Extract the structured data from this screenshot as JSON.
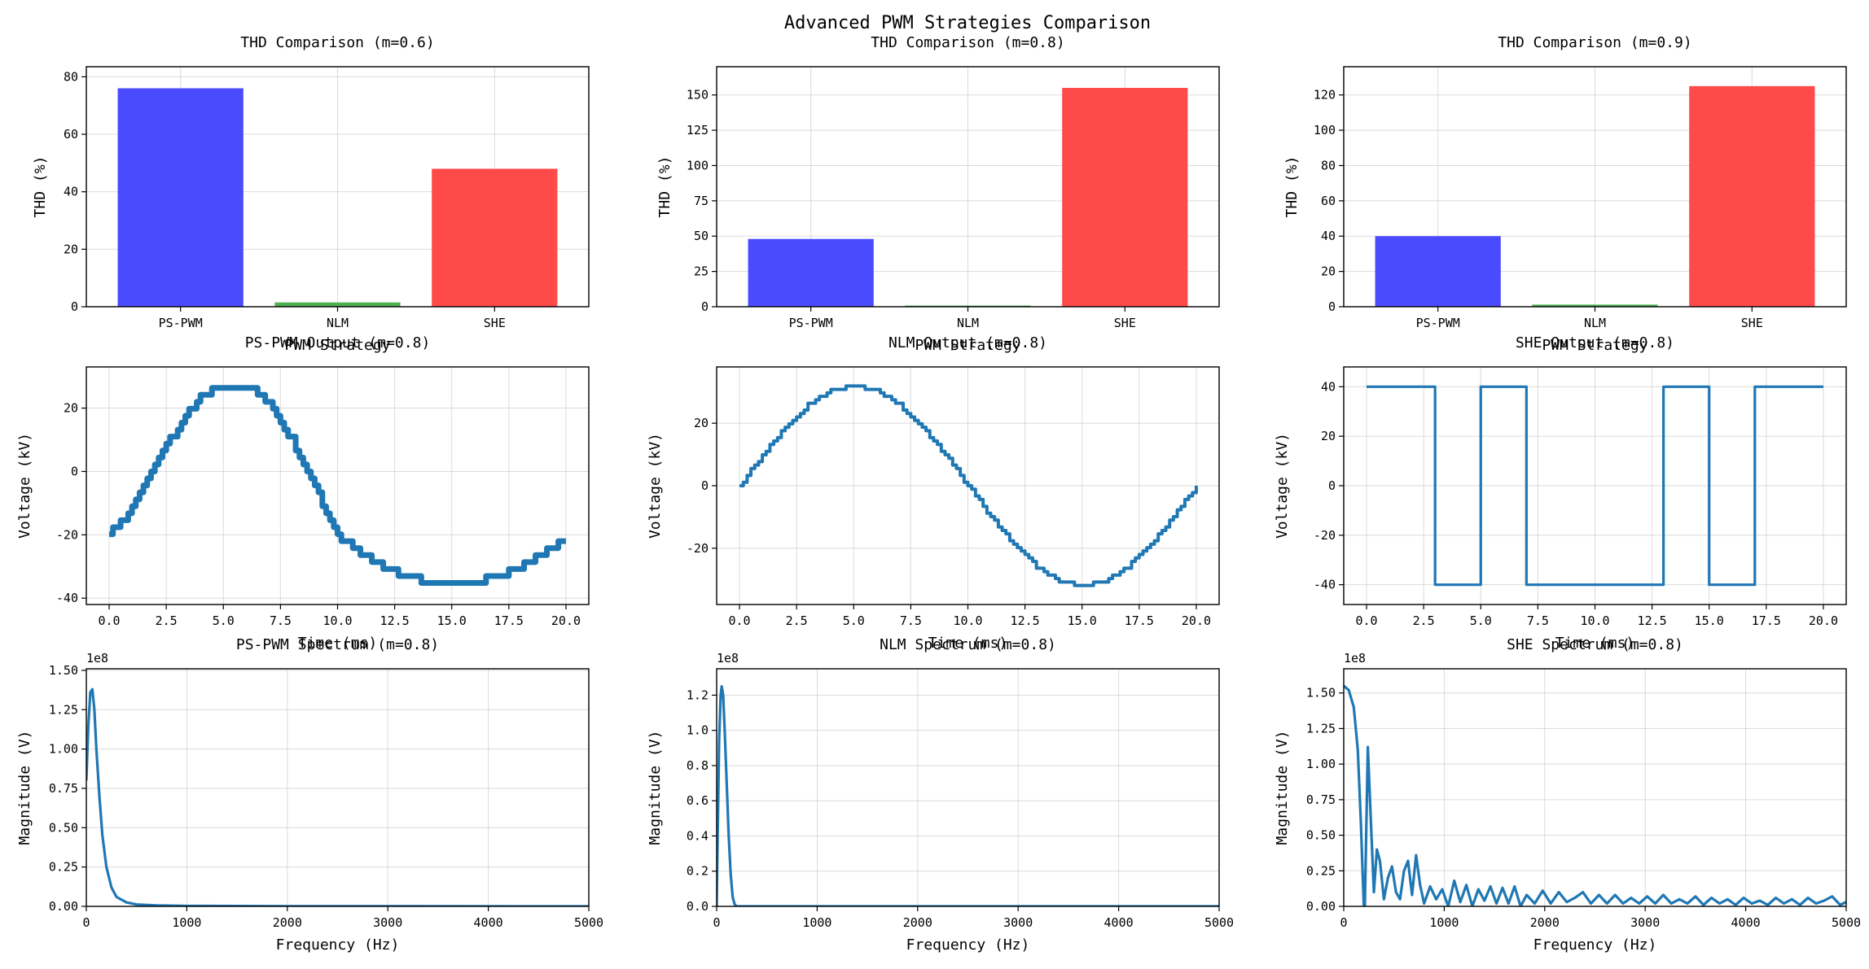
{
  "figure": {
    "suptitle": "Advanced PWM Strategies Comparison"
  },
  "colors": {
    "line": "#1f77b4",
    "bar_blue": "#4a4aff",
    "bar_green": "#4caf50",
    "bar_red": "#ff4a4a"
  },
  "chart_data": [
    {
      "type": "bar",
      "title": "THD Comparison (m=0.6)",
      "xlabel": "PWM Strategy",
      "ylabel": "THD (%)",
      "categories": [
        "PS-PWM",
        "NLM",
        "SHE"
      ],
      "values": [
        76,
        1.5,
        48
      ],
      "ylim": [
        0,
        83.5
      ],
      "yticks": [
        0,
        20,
        40,
        60,
        80
      ],
      "grid": true
    },
    {
      "type": "bar",
      "title": "THD Comparison (m=0.8)",
      "xlabel": "PWM Strategy",
      "ylabel": "THD (%)",
      "categories": [
        "PS-PWM",
        "NLM",
        "SHE"
      ],
      "values": [
        48,
        0.8,
        155
      ],
      "ylim": [
        0,
        170
      ],
      "yticks": [
        0,
        25,
        50,
        75,
        100,
        125,
        150
      ],
      "grid": true
    },
    {
      "type": "bar",
      "title": "THD Comparison (m=0.9)",
      "xlabel": "PWM Strategy",
      "ylabel": "THD (%)",
      "categories": [
        "PS-PWM",
        "NLM",
        "SHE"
      ],
      "values": [
        40,
        1.2,
        125
      ],
      "ylim": [
        0,
        136
      ],
      "yticks": [
        0,
        20,
        40,
        60,
        80,
        100,
        120
      ],
      "grid": true
    },
    {
      "type": "line",
      "title": "PS-PWM Output (m=0.8)",
      "xlabel": "Time (ms)",
      "ylabel": "Voltage (kV)",
      "xlim": [
        -1,
        21
      ],
      "ylim": [
        -42,
        33
      ],
      "xticks": [
        0,
        2.5,
        5,
        7.5,
        10,
        12.5,
        15,
        17.5,
        20
      ],
      "yticks": [
        -40,
        -20,
        0,
        20
      ],
      "x": [
        0,
        1,
        2,
        3,
        4,
        5,
        6,
        7,
        8,
        9,
        10,
        11,
        12,
        13,
        14,
        15,
        16,
        17,
        18,
        19,
        20
      ],
      "y": [
        -20,
        -12,
        2,
        14,
        24,
        27,
        27,
        22,
        10,
        -5,
        -20,
        -26,
        -30,
        -33,
        -35,
        -35,
        -35,
        -33,
        -30,
        -26,
        -21
      ],
      "grid": true
    },
    {
      "type": "line",
      "title": "NLM Output (m=0.8)",
      "xlabel": "Time (ms)",
      "ylabel": "Voltage (kV)",
      "xlim": [
        -1,
        21
      ],
      "ylim": [
        -38,
        38
      ],
      "xticks": [
        0,
        2.5,
        5,
        7.5,
        10,
        12.5,
        15,
        17.5,
        20
      ],
      "yticks": [
        -20,
        0,
        20
      ],
      "x": [
        0,
        1,
        2,
        3,
        4,
        5,
        6,
        7,
        8,
        9,
        10,
        11,
        12,
        13,
        14,
        15,
        16,
        17,
        18,
        19,
        20
      ],
      "y": [
        0,
        9.9,
        18.8,
        25.9,
        30.4,
        32,
        30.4,
        25.9,
        18.8,
        9.9,
        0,
        -9.9,
        -18.8,
        -25.9,
        -30.4,
        -32,
        -30.4,
        -25.9,
        -18.8,
        -9.9,
        0
      ],
      "grid": true
    },
    {
      "type": "line",
      "title": "SHE Output (m=0.8)",
      "xlabel": "Time (ms)",
      "ylabel": "Voltage (kV)",
      "xlim": [
        -1,
        21
      ],
      "ylim": [
        -48,
        48
      ],
      "xticks": [
        0,
        2.5,
        5,
        7.5,
        10,
        12.5,
        15,
        17.5,
        20
      ],
      "yticks": [
        -40,
        -20,
        0,
        20,
        40
      ],
      "x": [
        0,
        3,
        3,
        5,
        5,
        7,
        7,
        13,
        13,
        15,
        15,
        17,
        17,
        20
      ],
      "y": [
        40,
        40,
        -40,
        -40,
        40,
        40,
        -40,
        -40,
        40,
        40,
        -40,
        -40,
        40,
        40
      ],
      "grid": true
    },
    {
      "type": "line",
      "title": "PS-PWM Spectrum (m=0.8)",
      "xlabel": "Frequency (Hz)",
      "ylabel": "Magnitude (V)",
      "y_scale_label": "1e8",
      "xlim": [
        0,
        5000
      ],
      "ylim": [
        0,
        1.51
      ],
      "xticks": [
        0,
        1000,
        2000,
        3000,
        4000,
        5000
      ],
      "yticks": [
        0,
        0.25,
        0.5,
        0.75,
        1.0,
        1.25,
        1.5
      ],
      "ytick_labels": [
        "0.00",
        "0.25",
        "0.50",
        "0.75",
        "1.00",
        "1.25",
        "1.50"
      ],
      "x": [
        0,
        20,
        40,
        60,
        80,
        100,
        130,
        160,
        200,
        250,
        300,
        400,
        500,
        700,
        1000,
        2000,
        5000
      ],
      "y": [
        0.8,
        1.15,
        1.36,
        1.38,
        1.25,
        1.0,
        0.7,
        0.45,
        0.25,
        0.12,
        0.06,
        0.025,
        0.012,
        0.006,
        0.003,
        0.001,
        0
      ],
      "grid": true
    },
    {
      "type": "line",
      "title": "NLM Spectrum (m=0.8)",
      "xlabel": "Frequency (Hz)",
      "ylabel": "Magnitude (V)",
      "y_scale_label": "1e8",
      "xlim": [
        0,
        5000
      ],
      "ylim": [
        0,
        1.35
      ],
      "xticks": [
        0,
        1000,
        2000,
        3000,
        4000,
        5000
      ],
      "yticks": [
        0,
        0.2,
        0.4,
        0.6,
        0.8,
        1.0,
        1.2
      ],
      "ytick_labels": [
        "0.0",
        "0.2",
        "0.4",
        "0.6",
        "0.8",
        "1.0",
        "1.2"
      ],
      "x": [
        0,
        10,
        25,
        40,
        50,
        65,
        80,
        100,
        120,
        140,
        160,
        180,
        200,
        5000
      ],
      "y": [
        0,
        0.4,
        0.95,
        1.2,
        1.25,
        1.2,
        1.0,
        0.7,
        0.4,
        0.18,
        0.05,
        0.01,
        0,
        0
      ],
      "grid": true
    },
    {
      "type": "line",
      "title": "SHE Spectrum (m=0.8)",
      "xlabel": "Frequency (Hz)",
      "ylabel": "Magnitude (V)",
      "y_scale_label": "1e8",
      "xlim": [
        0,
        5000
      ],
      "ylim": [
        0,
        1.67
      ],
      "xticks": [
        0,
        1000,
        2000,
        3000,
        4000,
        5000
      ],
      "yticks": [
        0,
        0.25,
        0.5,
        0.75,
        1.0,
        1.25,
        1.5
      ],
      "ytick_labels": [
        "0.00",
        "0.25",
        "0.50",
        "0.75",
        "1.00",
        "1.25",
        "1.50"
      ],
      "x": [
        0,
        50,
        100,
        140,
        170,
        200,
        210,
        240,
        270,
        300,
        330,
        360,
        400,
        440,
        480,
        520,
        560,
        600,
        640,
        680,
        720,
        760,
        800,
        860,
        920,
        980,
        1040,
        1100,
        1160,
        1220,
        1280,
        1340,
        1400,
        1460,
        1520,
        1580,
        1640,
        1700,
        1760,
        1820,
        1900,
        1980,
        2060,
        2140,
        2220,
        2300,
        2380,
        2460,
        2540,
        2620,
        2700,
        2780,
        2860,
        2940,
        3020,
        3100,
        3180,
        3260,
        3340,
        3420,
        3500,
        3580,
        3660,
        3740,
        3820,
        3900,
        3980,
        4060,
        4140,
        4220,
        4300,
        4380,
        4460,
        4540,
        4620,
        4700,
        4780,
        4860,
        4940,
        5000
      ],
      "y": [
        1.55,
        1.52,
        1.4,
        1.1,
        0.6,
        0.0,
        0.0,
        1.12,
        0.6,
        0.1,
        0.4,
        0.32,
        0.05,
        0.2,
        0.28,
        0.1,
        0.05,
        0.25,
        0.32,
        0.08,
        0.36,
        0.15,
        0.02,
        0.14,
        0.05,
        0.12,
        0.0,
        0.18,
        0.03,
        0.15,
        0.0,
        0.12,
        0.04,
        0.14,
        0.02,
        0.13,
        0.02,
        0.14,
        0.0,
        0.08,
        0.02,
        0.11,
        0.02,
        0.1,
        0.03,
        0.06,
        0.1,
        0.02,
        0.08,
        0.02,
        0.08,
        0.02,
        0.06,
        0.02,
        0.07,
        0.02,
        0.08,
        0.02,
        0.05,
        0.02,
        0.07,
        0.01,
        0.06,
        0.02,
        0.05,
        0.01,
        0.06,
        0.02,
        0.04,
        0.01,
        0.06,
        0.02,
        0.05,
        0.01,
        0.06,
        0.02,
        0.04,
        0.07,
        0.01,
        0.03
      ],
      "grid": true
    }
  ]
}
